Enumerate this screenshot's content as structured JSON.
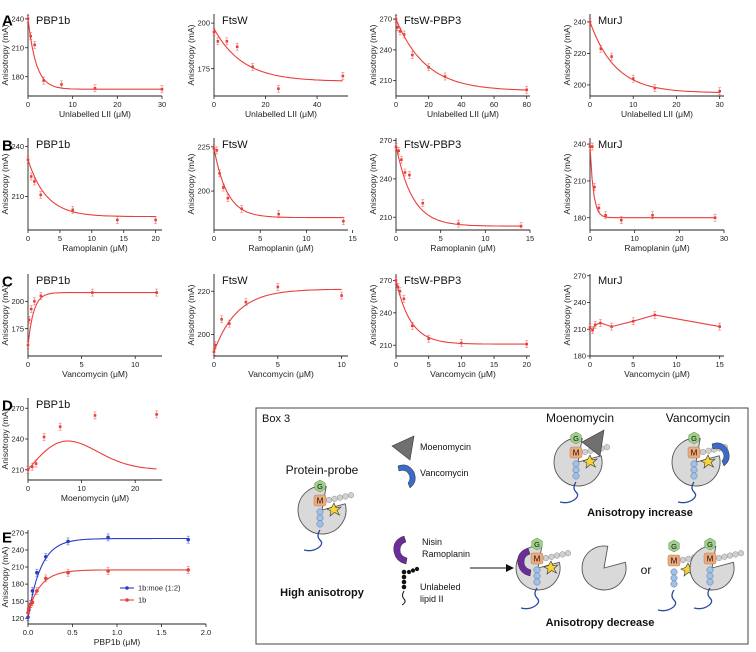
{
  "row_labels": [
    "A",
    "B",
    "C",
    "D",
    "E"
  ],
  "colors": {
    "red": "#e8403c",
    "blue": "#2a3cc8"
  },
  "chart_data": [
    {
      "type": "scatter",
      "row": "A",
      "title": "PBP1b",
      "xlabel": "Unlabelled LII (μM)",
      "ylabel": "Anisotropy (mA)",
      "xlim": [
        0,
        30
      ],
      "ylim": [
        160,
        245
      ],
      "xticks": [
        0,
        10,
        20,
        30
      ],
      "yticks": [
        180,
        210,
        240
      ],
      "x": [
        0,
        0.6,
        1.5,
        3.5,
        7.5,
        15,
        30
      ],
      "y": [
        240,
        222,
        213,
        176,
        172,
        168,
        167
      ],
      "fit": {
        "kind": "decay",
        "y0": 240,
        "yinf": 167,
        "k": 0.55
      }
    },
    {
      "type": "scatter",
      "row": "A",
      "title": "FtsW",
      "xlabel": "Unlabelled LII (μM)",
      "ylabel": "Anisotropy (mA)",
      "xlim": [
        0,
        52
      ],
      "ylim": [
        160,
        205
      ],
      "xticks": [
        0,
        20,
        40
      ],
      "yticks": [
        175,
        200
      ],
      "x": [
        0,
        1.5,
        5,
        9,
        15,
        25,
        50
      ],
      "y": [
        195,
        190,
        190,
        187,
        176,
        164,
        171
      ],
      "fit": {
        "kind": "decay",
        "y0": 197,
        "yinf": 168,
        "k": 0.09
      }
    },
    {
      "type": "scatter",
      "row": "A",
      "title": "FtsW-PBP3",
      "xlabel": "Unlabelled LII (μM)",
      "ylabel": "Anisotropy (mA)",
      "xlim": [
        0,
        82
      ],
      "ylim": [
        195,
        275
      ],
      "xticks": [
        0,
        20,
        40,
        60,
        80
      ],
      "yticks": [
        210,
        240,
        270
      ],
      "x": [
        0,
        1,
        2.5,
        5,
        10,
        20,
        30,
        80
      ],
      "y": [
        270,
        262,
        258,
        255,
        235,
        223,
        214,
        201
      ],
      "fit": {
        "kind": "decay",
        "y0": 270,
        "yinf": 200,
        "k": 0.055
      }
    },
    {
      "type": "scatter",
      "row": "A",
      "title": "MurJ",
      "xlabel": "Unlabelled LII (μM)",
      "ylabel": "Anisotropy (mA)",
      "xlim": [
        0,
        31
      ],
      "ylim": [
        193,
        245
      ],
      "xticks": [
        0,
        10,
        20,
        30
      ],
      "yticks": [
        200,
        220,
        240
      ],
      "x": [
        0,
        2.5,
        5,
        10,
        15,
        30
      ],
      "y": [
        240,
        223,
        218,
        204,
        198,
        196
      ],
      "fit": {
        "kind": "decay",
        "y0": 240,
        "yinf": 195,
        "k": 0.17
      }
    },
    {
      "type": "scatter",
      "row": "B",
      "title": "PBP1b",
      "xlabel": "Ramoplanin (μM)",
      "ylabel": "Anisotropy (mA)",
      "xlim": [
        0,
        21
      ],
      "ylim": [
        190,
        245
      ],
      "xticks": [
        0,
        5,
        10,
        15,
        20
      ],
      "yticks": [
        210,
        240
      ],
      "x": [
        0,
        0.5,
        1,
        2,
        7,
        14,
        20
      ],
      "y": [
        232,
        222,
        219,
        211,
        202,
        196,
        196
      ],
      "fit": {
        "kind": "decay",
        "y0": 232,
        "yinf": 198,
        "k": 0.35
      }
    },
    {
      "type": "scatter",
      "row": "B",
      "title": "FtsW",
      "xlabel": "Ramoplanin (μM)",
      "ylabel": "Anisotropy (mA)",
      "xlim": [
        0,
        14.5
      ],
      "ylim": [
        178,
        230
      ],
      "xticks": [
        0,
        5,
        10,
        15
      ],
      "yticks": [
        200,
        225
      ],
      "x": [
        0,
        0.3,
        0.6,
        1,
        1.5,
        3,
        7,
        14
      ],
      "y": [
        224,
        223,
        210,
        202,
        196,
        190,
        187,
        183
      ],
      "fit": {
        "kind": "decay",
        "y0": 224,
        "yinf": 185,
        "k": 0.7
      }
    },
    {
      "type": "scatter",
      "row": "B",
      "title": "FtsW-PBP3",
      "xlabel": "Ramoplanin (μM)",
      "ylabel": "Anisotropy (mA)",
      "xlim": [
        0,
        15
      ],
      "ylim": [
        200,
        272
      ],
      "xticks": [
        0,
        5,
        10,
        15
      ],
      "yticks": [
        210,
        240,
        270
      ],
      "x": [
        0,
        0.3,
        0.6,
        1,
        1.5,
        3,
        7,
        14
      ],
      "y": [
        265,
        262,
        255,
        245,
        243,
        221,
        205,
        203
      ],
      "fit": {
        "kind": "decay",
        "y0": 266,
        "yinf": 203,
        "k": 0.55
      }
    },
    {
      "type": "scatter",
      "row": "B",
      "title": "MurJ",
      "xlabel": "Ramoplanin (μM)",
      "ylabel": "Anisotropy (mA)",
      "xlim": [
        0,
        30
      ],
      "ylim": [
        170,
        245
      ],
      "xticks": [
        0,
        10,
        20,
        30
      ],
      "yticks": [
        180,
        210,
        240
      ],
      "x": [
        0,
        0.5,
        1,
        2,
        3.5,
        7,
        14,
        28
      ],
      "y": [
        238,
        238,
        205,
        188,
        182,
        178,
        182,
        180
      ],
      "fit": {
        "kind": "decay",
        "y0": 238,
        "yinf": 180,
        "k": 1.3
      }
    },
    {
      "type": "scatter",
      "row": "C",
      "title": "PBP1b",
      "xlabel": "Vancomycin (μM)",
      "ylabel": "Anisotropy (mA)",
      "xlim": [
        0,
        12.5
      ],
      "ylim": [
        150,
        225
      ],
      "xticks": [
        0,
        5,
        10
      ],
      "yticks": [
        175,
        200
      ],
      "x": [
        0,
        0.1,
        0.3,
        0.6,
        1.2,
        6,
        12
      ],
      "y": [
        160,
        183,
        193,
        200,
        205,
        208,
        208
      ],
      "fit": {
        "kind": "rise",
        "y0": 160,
        "yinf": 208,
        "k": 1.9
      }
    },
    {
      "type": "scatter",
      "row": "C",
      "title": "FtsW",
      "xlabel": "Vancomycin (μM)",
      "ylabel": "Anisotropy (mA)",
      "xlim": [
        0,
        10.5
      ],
      "ylim": [
        190,
        228
      ],
      "xticks": [
        0,
        5,
        10
      ],
      "yticks": [
        200,
        220
      ],
      "x": [
        0,
        0.1,
        0.6,
        1.2,
        2.5,
        5,
        10
      ],
      "y": [
        192,
        195,
        207,
        205,
        215,
        222,
        218
      ],
      "fit": {
        "kind": "rise",
        "y0": 192,
        "yinf": 221,
        "k": 0.55
      }
    },
    {
      "type": "scatter",
      "row": "C",
      "title": "FtsW-PBP3",
      "xlabel": "Vancomycin (μM)",
      "ylabel": "Anisotropy (mA)",
      "xlim": [
        0,
        20.5
      ],
      "ylim": [
        200,
        276
      ],
      "xticks": [
        0,
        5,
        10,
        15,
        20
      ],
      "yticks": [
        210,
        240,
        270
      ],
      "x": [
        0,
        0.3,
        0.6,
        1.2,
        2.5,
        5,
        10,
        20
      ],
      "y": [
        270,
        264,
        260,
        253,
        228,
        216,
        212,
        211
      ],
      "fit": {
        "kind": "decay",
        "y0": 270,
        "yinf": 211,
        "k": 0.45
      }
    },
    {
      "type": "line",
      "row": "C",
      "title": "MurJ",
      "xlabel": "Vancomycin (μM)",
      "ylabel": "Anisotropy (mA)",
      "xlim": [
        0,
        15.5
      ],
      "ylim": [
        180,
        272
      ],
      "xticks": [
        0,
        5,
        10,
        15
      ],
      "yticks": [
        180,
        210,
        240,
        270
      ],
      "x": [
        0,
        0.3,
        0.6,
        1.2,
        2.5,
        5,
        7.5,
        15
      ],
      "y": [
        212,
        209,
        215,
        217,
        213,
        219,
        226,
        213
      ],
      "fit": {
        "kind": "connect"
      }
    },
    {
      "type": "scatter",
      "row": "D",
      "title": "PBP1b",
      "xlabel": "Moenomycin (μM)",
      "ylabel": "Anisotropy (mA)",
      "xlim": [
        0,
        25
      ],
      "ylim": [
        200,
        280
      ],
      "xticks": [
        0,
        10,
        20
      ],
      "yticks": [
        210,
        240,
        270
      ],
      "x": [
        0,
        0.8,
        1.5,
        3,
        6,
        12.5,
        24
      ],
      "y": [
        210,
        213,
        216,
        242,
        252,
        263,
        264
      ],
      "fit": {
        "kind": "peak",
        "a": 210,
        "b": 6.2,
        "c": 0.018
      }
    },
    {
      "type": "scatter",
      "row": "E",
      "title": "",
      "xlabel": "PBP1b (μM)",
      "ylabel": "Anisotropy (mA)",
      "xlim": [
        0,
        2.0
      ],
      "ylim": [
        110,
        275
      ],
      "xticks": [
        0,
        0.5,
        1,
        1.5,
        2
      ],
      "xtick_labels": [
        "0.0",
        "0.5",
        "1.0",
        "1.5",
        "2.0"
      ],
      "yticks": [
        120,
        150,
        180,
        210,
        240,
        270
      ],
      "series": [
        {
          "name": "1b:moe (1:2)",
          "color": "blue",
          "x": [
            0,
            0.01,
            0.03,
            0.05,
            0.1,
            0.2,
            0.45,
            0.9,
            1.8
          ],
          "y": [
            122,
            135,
            145,
            168,
            200,
            228,
            255,
            262,
            258
          ],
          "fit": {
            "kind": "rise",
            "y0": 120,
            "yinf": 260,
            "k": 7
          }
        },
        {
          "name": "1b",
          "color": "red",
          "x": [
            0,
            0.01,
            0.03,
            0.05,
            0.1,
            0.2,
            0.45,
            0.9,
            1.8
          ],
          "y": [
            130,
            138,
            145,
            148,
            168,
            190,
            200,
            203,
            205
          ],
          "fit": {
            "kind": "rise",
            "y0": 130,
            "yinf": 205,
            "k": 7
          }
        }
      ],
      "legend": "bottom-right"
    }
  ],
  "box3": {
    "title": "Box 3",
    "protein_probe": "Protein-probe",
    "high_anisotropy": "High anisotropy",
    "legend_moenomycin": "Moenomycin",
    "legend_vancomycin": "Vancomycin",
    "header_moenomycin": "Moenomycin",
    "header_vancomycin": "Vancomycin",
    "anisotropy_increase": "Anisotropy increase",
    "nisin": "Nisin",
    "ramoplanin": "Ramoplanin",
    "unlabeled_line1": "Unlabeled",
    "unlabeled_line2": "lipid II",
    "or": "or",
    "anisotropy_decrease": "Anisotropy decrease",
    "g_label": "G",
    "m_label": "M"
  }
}
